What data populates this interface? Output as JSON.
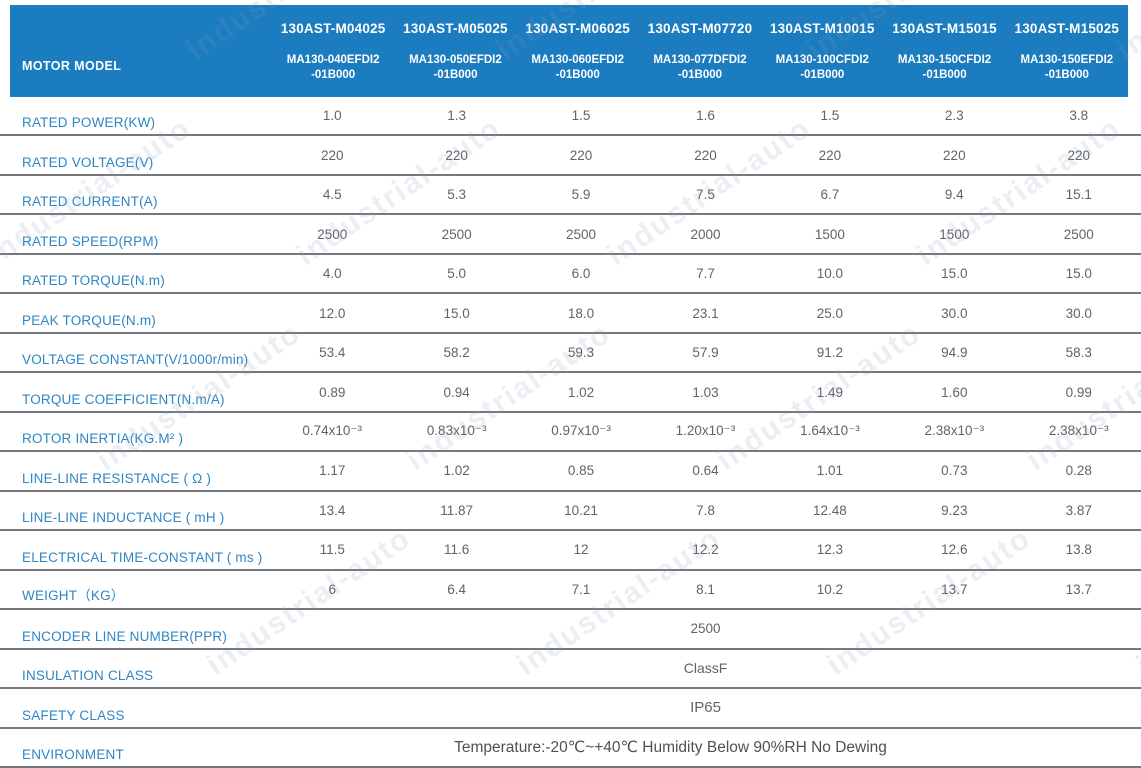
{
  "watermark": {
    "text": "industrial-auto"
  },
  "colors": {
    "header_bg": "#1b7cc0",
    "header_text": "#ffffff",
    "label_blue": "#2e86c4",
    "value_gray": "#606468",
    "divider_gray": "#75797d"
  },
  "table": {
    "corner_label": "MOTOR MODEL",
    "columns": [
      {
        "model": "130AST-M04025",
        "part_line1": "MA130-040EFDI2",
        "part_line2": "-01B000"
      },
      {
        "model": "130AST-M05025",
        "part_line1": "MA130-050EFDI2",
        "part_line2": "-01B000"
      },
      {
        "model": "130AST-M06025",
        "part_line1": "MA130-060EFDI2",
        "part_line2": "-01B000"
      },
      {
        "model": "130AST-M07720",
        "part_line1": "MA130-077DFDI2",
        "part_line2": "-01B000"
      },
      {
        "model": "130AST-M10015",
        "part_line1": "MA130-100CFDI2",
        "part_line2": "-01B000"
      },
      {
        "model": "130AST-M15015",
        "part_line1": "MA130-150CFDI2",
        "part_line2": "-01B000"
      },
      {
        "model": "130AST-M15025",
        "part_line1": "MA130-150EFDI2",
        "part_line2": "-01B000"
      }
    ],
    "rows": [
      {
        "label": "RATED POWER(KW)",
        "values": [
          "1.0",
          "1.3",
          "1.5",
          "1.6",
          "1.5",
          "2.3",
          "3.8"
        ]
      },
      {
        "label": "RATED VOLTAGE(V)",
        "values": [
          "220",
          "220",
          "220",
          "220",
          "220",
          "220",
          "220"
        ]
      },
      {
        "label": "RATED CURRENT(A)",
        "values": [
          "4.5",
          "5.3",
          "5.9",
          "7.5",
          "6.7",
          "9.4",
          "15.1"
        ]
      },
      {
        "label": "RATED SPEED(RPM)",
        "values": [
          "2500",
          "2500",
          "2500",
          "2000",
          "1500",
          "1500",
          "2500"
        ]
      },
      {
        "label": "RATED TORQUE(N.m)",
        "values": [
          "4.0",
          "5.0",
          "6.0",
          "7.7",
          "10.0",
          "15.0",
          "15.0"
        ]
      },
      {
        "label": "PEAK TORQUE(N.m)",
        "values": [
          "12.0",
          "15.0",
          "18.0",
          "23.1",
          "25.0",
          "30.0",
          "30.0"
        ]
      },
      {
        "label": "VOLTAGE CONSTANT(V/1000r/min)",
        "values": [
          "53.4",
          "58.2",
          "59.3",
          "57.9",
          "91.2",
          "94.9",
          "58.3"
        ]
      },
      {
        "label": "TORQUE COEFFICIENT(N.m/A)",
        "values": [
          "0.89",
          "0.94",
          "1.02",
          "1.03",
          "1.49",
          "1.60",
          "0.99"
        ]
      },
      {
        "label": "ROTOR INERTIA(KG.M² )",
        "values": [
          "0.74x10⁻³",
          "0.83x10⁻³",
          "0.97x10⁻³",
          "1.20x10⁻³",
          "1.64x10⁻³",
          "2.38x10⁻³",
          "2.38x10⁻³"
        ]
      },
      {
        "label": "LINE-LINE RESISTANCE ( Ω )",
        "values": [
          "1.17",
          "1.02",
          "0.85",
          "0.64",
          "1.01",
          "0.73",
          "0.28"
        ]
      },
      {
        "label": "LINE-LINE INDUCTANCE ( mH )",
        "values": [
          "13.4",
          "11.87",
          "10.21",
          "7.8",
          "12.48",
          "9.23",
          "3.87"
        ]
      },
      {
        "label": "ELECTRICAL TIME-CONSTANT ( ms )",
        "values": [
          "11.5",
          "11.6",
          "12",
          "12.2",
          "12.3",
          "12.6",
          "13.8"
        ]
      },
      {
        "label": "WEIGHT（KG）",
        "values": [
          "6",
          "6.4",
          "7.1",
          "8.1",
          "10.2",
          "13.7",
          "13.7"
        ]
      }
    ],
    "span_rows": [
      {
        "label": "ENCODER LINE NUMBER(PPR)",
        "value": "2500"
      },
      {
        "label": "INSULATION CLASS",
        "value": "ClassF"
      },
      {
        "label": "SAFETY CLASS",
        "value": "IP65"
      },
      {
        "label": "ENVIRONMENT",
        "value": "Temperature:-20℃~+40℃  Humidity Below 90%RH No Dewing"
      }
    ]
  }
}
